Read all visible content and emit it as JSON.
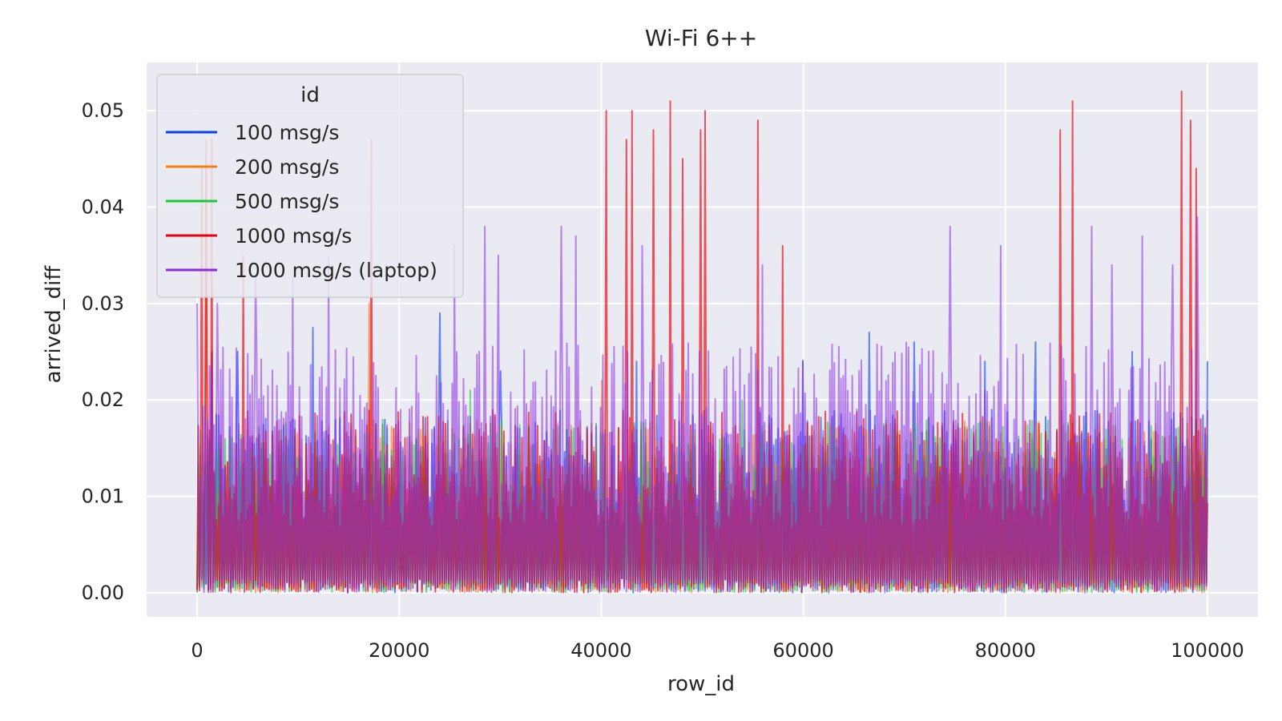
{
  "chart_data": {
    "type": "line",
    "title": "Wi-Fi 6++",
    "xlabel": "row_id",
    "ylabel": "arrived_diff",
    "xlim": [
      -5000,
      105000
    ],
    "ylim": [
      -0.0025,
      0.055
    ],
    "x_ticks": [
      0,
      20000,
      40000,
      60000,
      80000,
      100000
    ],
    "x_tick_labels": [
      "0",
      "20000",
      "40000",
      "60000",
      "80000",
      "100000"
    ],
    "y_ticks": [
      0.0,
      0.01,
      0.02,
      0.03,
      0.04,
      0.05
    ],
    "y_tick_labels": [
      "0.00",
      "0.01",
      "0.02",
      "0.03",
      "0.04",
      "0.05"
    ],
    "grid": true,
    "legend": {
      "title": "id",
      "placement": "top-left"
    },
    "series": [
      {
        "name": "100 msg/s",
        "color": "#0b3ef5",
        "x_range": [
          0,
          100000
        ],
        "typical_max": 0.019,
        "spikes": [
          [
            1500,
            0.025
          ],
          [
            4000,
            0.025
          ],
          [
            11500,
            0.0275
          ],
          [
            24000,
            0.029
          ],
          [
            30000,
            0.023
          ],
          [
            43500,
            0.024
          ],
          [
            60000,
            0.024
          ],
          [
            66500,
            0.027
          ],
          [
            71000,
            0.026
          ],
          [
            78000,
            0.024
          ],
          [
            83000,
            0.026
          ],
          [
            92500,
            0.025
          ],
          [
            100000,
            0.024
          ]
        ]
      },
      {
        "name": "200 msg/s",
        "color": "#f97c10",
        "x_range": [
          0,
          100000
        ],
        "typical_max": 0.018,
        "spikes": [
          [
            900,
            0.045
          ],
          [
            17000,
            0.03
          ],
          [
            40000,
            0.022
          ]
        ]
      },
      {
        "name": "500 msg/s",
        "color": "#1ac938",
        "x_range": [
          0,
          100000
        ],
        "typical_max": 0.018,
        "spikes": [
          [
            27000,
            0.021
          ],
          [
            54000,
            0.02
          ]
        ]
      },
      {
        "name": "1000 msg/s",
        "color": "#e8000b",
        "x_range": [
          0,
          100000
        ],
        "typical_max": 0.019,
        "spikes": [
          [
            500,
            0.044
          ],
          [
            900,
            0.047
          ],
          [
            1500,
            0.047
          ],
          [
            4600,
            0.035
          ],
          [
            17200,
            0.047
          ],
          [
            40500,
            0.05
          ],
          [
            42500,
            0.047
          ],
          [
            43100,
            0.05
          ],
          [
            45200,
            0.048
          ],
          [
            46800,
            0.051
          ],
          [
            48000,
            0.045
          ],
          [
            49800,
            0.048
          ],
          [
            50300,
            0.05
          ],
          [
            55500,
            0.049
          ],
          [
            58000,
            0.036
          ],
          [
            85400,
            0.048
          ],
          [
            86600,
            0.051
          ],
          [
            97400,
            0.052
          ],
          [
            98300,
            0.049
          ],
          [
            98900,
            0.044
          ]
        ]
      },
      {
        "name": "1000 msg/s (laptop)",
        "color": "#8b2be2",
        "x_range": [
          0,
          100000
        ],
        "typical_max": 0.026,
        "spikes": [
          [
            0,
            0.03
          ],
          [
            2000,
            0.03
          ],
          [
            5800,
            0.033
          ],
          [
            9500,
            0.033
          ],
          [
            13000,
            0.035
          ],
          [
            25500,
            0.036
          ],
          [
            28500,
            0.038
          ],
          [
            29800,
            0.035
          ],
          [
            36000,
            0.038
          ],
          [
            37500,
            0.037
          ],
          [
            44000,
            0.036
          ],
          [
            56000,
            0.034
          ],
          [
            74500,
            0.038
          ],
          [
            79500,
            0.036
          ],
          [
            88500,
            0.038
          ],
          [
            90500,
            0.034
          ],
          [
            93500,
            0.037
          ],
          [
            96500,
            0.034
          ],
          [
            99000,
            0.039
          ]
        ]
      }
    ]
  }
}
